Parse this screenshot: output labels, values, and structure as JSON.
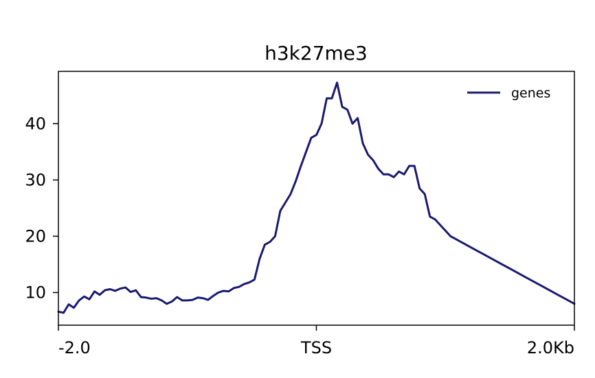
{
  "chart_data": {
    "type": "line",
    "title": "h3k27me3",
    "xlabel": "",
    "ylabel": "",
    "x_ticks": [
      {
        "value": -2000,
        "label": "-2.0"
      },
      {
        "value": 0,
        "label": "TSS"
      },
      {
        "value": 2000,
        "label": "2.0Kb"
      }
    ],
    "y_ticks": [
      {
        "value": 10,
        "label": "10"
      },
      {
        "value": 20,
        "label": "20"
      },
      {
        "value": 30,
        "label": "30"
      },
      {
        "value": 40,
        "label": "40"
      }
    ],
    "xlim": [
      -2000,
      2000
    ],
    "ylim": [
      4.2,
      49.3
    ],
    "grid": false,
    "legend_position": "top-right",
    "series": [
      {
        "name": "genes",
        "color": "#191970",
        "x": [
          -2000,
          -1960,
          -1920,
          -1880,
          -1840,
          -1800,
          -1760,
          -1720,
          -1680,
          -1640,
          -1600,
          -1560,
          -1520,
          -1480,
          -1440,
          -1400,
          -1360,
          -1320,
          -1280,
          -1240,
          -1200,
          -1160,
          -1120,
          -1080,
          -1040,
          -1000,
          -960,
          -920,
          -880,
          -840,
          -800,
          -760,
          -720,
          -680,
          -640,
          -600,
          -560,
          -520,
          -480,
          -440,
          -400,
          -360,
          -320,
          -280,
          -240,
          -200,
          -160,
          -120,
          -80,
          -40,
          0,
          40,
          80,
          120,
          160,
          200,
          240,
          280,
          320,
          360,
          400,
          440,
          480,
          520,
          560,
          600,
          640,
          680,
          720,
          760,
          800,
          840,
          880,
          920,
          960,
          1000,
          1040,
          1080,
          1120,
          1160,
          1200,
          1240,
          1280,
          1320,
          1360,
          1400,
          1440,
          1480,
          1520,
          1560,
          1600,
          1640,
          1680,
          1720,
          1760,
          1800,
          1840,
          1880,
          1920,
          1960,
          2000
        ],
        "values": [
          6.6,
          6.4,
          7.9,
          7.3,
          8.6,
          9.3,
          8.8,
          10.2,
          9.6,
          10.4,
          10.6,
          10.3,
          10.7,
          10.9,
          10.1,
          10.4,
          9.2,
          9.1,
          8.9,
          9.0,
          8.6,
          8.0,
          8.4,
          9.2,
          8.6,
          8.6,
          8.7,
          9.1,
          9.0,
          8.7,
          9.4,
          10.0,
          10.3,
          10.2,
          10.8,
          11.0,
          11.5,
          11.8,
          12.3,
          16.0,
          18.5,
          19.0,
          20.0,
          24.5,
          26.0,
          27.5,
          29.8,
          32.5,
          35.0,
          37.5,
          38.0,
          40.0,
          44.5,
          44.5,
          47.3,
          43.0,
          42.5,
          40.0,
          41.0,
          36.5,
          34.5,
          33.5,
          32.0,
          31.0,
          31.0,
          30.5,
          31.5,
          31.0,
          32.5,
          32.5,
          28.5,
          27.5,
          23.5,
          23.0,
          22.0,
          21.0,
          20.0,
          19.5,
          19.0,
          18.5,
          18.0,
          17.5,
          17.0,
          16.5,
          16.0,
          15.5,
          15.0,
          14.5,
          14.0,
          13.5,
          13.0,
          12.5,
          12.0,
          11.5,
          11.0,
          10.5,
          10.0,
          9.5,
          9.0,
          8.5,
          8.0
        ]
      }
    ]
  }
}
